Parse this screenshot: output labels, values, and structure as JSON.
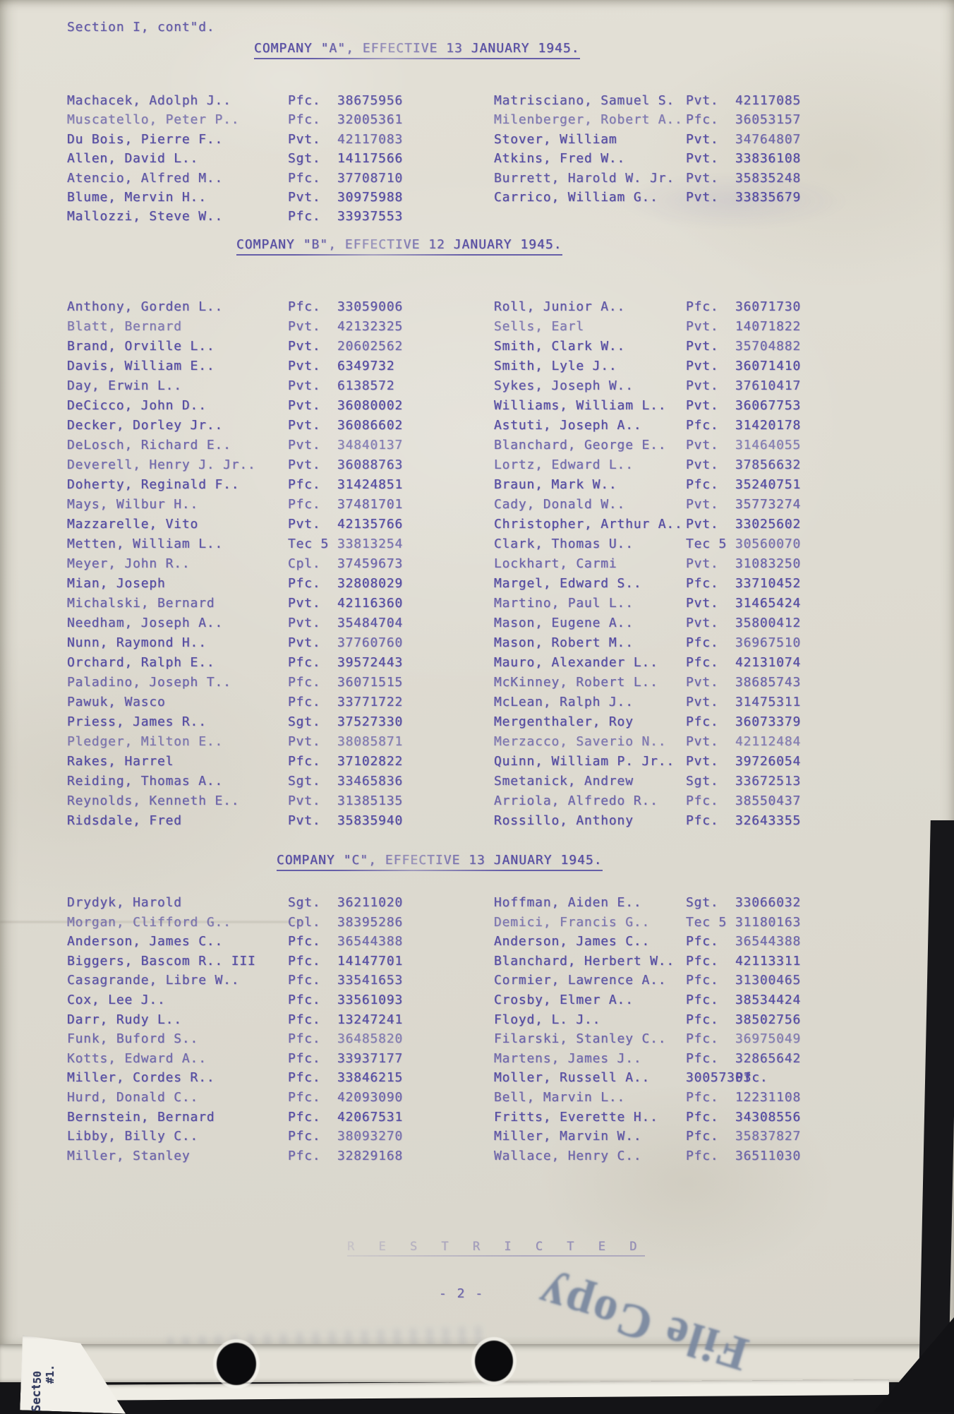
{
  "page": {
    "section_label": "Section I, cont\"d.",
    "restricted": "R E S T R I C T E D",
    "page_number": "- 2 -",
    "stamp": "File Copy",
    "edge_note_top": "50 #1.",
    "edge_note_bottom": "Sectio"
  },
  "ink_color": "#574ea2",
  "companies": [
    {
      "title": "COMPANY \"A\", EFFECTIVE 13 JANUARY 1945.",
      "left": [
        {
          "name": "Machacek, Adolph J..",
          "grade": "Pfc.",
          "serial": "38675956"
        },
        {
          "name": "Muscatello, Peter P..",
          "grade": "Pfc.",
          "serial": "32005361"
        },
        {
          "name": "Du Bois, Pierre F..",
          "grade": "Pvt.",
          "serial": "42117083"
        },
        {
          "name": "Allen, David L..",
          "grade": "Sgt.",
          "serial": "14117566"
        },
        {
          "name": "Atencio, Alfred M..",
          "grade": "Pfc.",
          "serial": "37708710"
        },
        {
          "name": "Blume, Mervin H..",
          "grade": "Pvt.",
          "serial": "30975988"
        },
        {
          "name": "Mallozzi, Steve W..",
          "grade": "Pfc.",
          "serial": "33937553"
        }
      ],
      "right": [
        {
          "name": "Matrisciano, Samuel S.",
          "grade": "Pvt.",
          "serial": "42117085"
        },
        {
          "name": "Milenberger, Robert A..",
          "grade": "Pfc.",
          "serial": "36053157"
        },
        {
          "name": "Stover, William",
          "grade": "Pvt.",
          "serial": "34764807"
        },
        {
          "name": "Atkins, Fred W..",
          "grade": "Pvt.",
          "serial": "33836108"
        },
        {
          "name": "Burrett, Harold W. Jr.",
          "grade": "Pvt.",
          "serial": "35835248"
        },
        {
          "name": "Carrico, William G..",
          "grade": "Pvt.",
          "serial": "33835679"
        }
      ]
    },
    {
      "title": "COMPANY \"B\", EFFECTIVE 12 JANUARY 1945.",
      "left": [
        {
          "name": "Anthony, Gorden L..",
          "grade": "Pfc.",
          "serial": "33059006"
        },
        {
          "name": "Blatt, Bernard",
          "grade": "Pvt.",
          "serial": "42132325"
        },
        {
          "name": "Brand, Orville L..",
          "grade": "Pvt.",
          "serial": "20602562"
        },
        {
          "name": "Davis, William E..",
          "grade": "Pvt.",
          "serial": "6349732"
        },
        {
          "name": "Day, Erwin L..",
          "grade": "Pvt.",
          "serial": "6138572"
        },
        {
          "name": "DeCicco, John D..",
          "grade": "Pvt.",
          "serial": "36080002"
        },
        {
          "name": "Decker, Dorley Jr..",
          "grade": "Pvt.",
          "serial": "36086602"
        },
        {
          "name": "DeLosch, Richard E..",
          "grade": "Pvt.",
          "serial": "34840137"
        },
        {
          "name": "Deverell, Henry J. Jr..",
          "grade": "Pvt.",
          "serial": "36088763"
        },
        {
          "name": "Doherty, Reginald F..",
          "grade": "Pfc.",
          "serial": "31424851"
        },
        {
          "name": "Mays, Wilbur H..",
          "grade": "Pfc.",
          "serial": "37481701"
        },
        {
          "name": "Mazzarelle, Vito",
          "grade": "Pvt.",
          "serial": "42135766"
        },
        {
          "name": "Metten, William L..",
          "grade": "Tec 5",
          "serial": "33813254"
        },
        {
          "name": "Meyer, John R..",
          "grade": "Cpl.",
          "serial": "37459673"
        },
        {
          "name": "Mian, Joseph",
          "grade": "Pfc.",
          "serial": "32808029"
        },
        {
          "name": "Michalski, Bernard",
          "grade": "Pvt.",
          "serial": "42116360"
        },
        {
          "name": "Needham, Joseph A..",
          "grade": "Pvt.",
          "serial": "35484704"
        },
        {
          "name": "Nunn, Raymond H..",
          "grade": "Pvt.",
          "serial": "37760760"
        },
        {
          "name": "Orchard, Ralph E..",
          "grade": "Pfc.",
          "serial": "39572443"
        },
        {
          "name": "Paladino, Joseph T..",
          "grade": "Pfc.",
          "serial": "36071515"
        },
        {
          "name": "Pawuk, Wasco",
          "grade": "Pfc.",
          "serial": "33771722"
        },
        {
          "name": "Priess, James R..",
          "grade": "Sgt.",
          "serial": "37527330"
        },
        {
          "name": "Pledger, Milton E..",
          "grade": "Pvt.",
          "serial": "38085871"
        },
        {
          "name": "Rakes, Harrel",
          "grade": "Pfc.",
          "serial": "37102822"
        },
        {
          "name": "Reiding, Thomas A..",
          "grade": "Sgt.",
          "serial": "33465836"
        },
        {
          "name": "Reynolds, Kenneth E..",
          "grade": "Pvt.",
          "serial": "31385135"
        },
        {
          "name": "Ridsdale, Fred",
          "grade": "Pvt.",
          "serial": "35835940"
        }
      ],
      "right": [
        {
          "name": "Roll, Junior A..",
          "grade": "Pfc.",
          "serial": "36071730"
        },
        {
          "name": "Sells, Earl",
          "grade": "Pvt.",
          "serial": "14071822"
        },
        {
          "name": "Smith, Clark W..",
          "grade": "Pvt.",
          "serial": "35704882"
        },
        {
          "name": "Smith, Lyle J..",
          "grade": "Pvt.",
          "serial": "36071410"
        },
        {
          "name": "Sykes, Joseph W..",
          "grade": "Pvt.",
          "serial": "37610417"
        },
        {
          "name": "Williams, William L..",
          "grade": "Pvt.",
          "serial": "36067753"
        },
        {
          "name": "Astuti, Joseph A..",
          "grade": "Pfc.",
          "serial": "31420178"
        },
        {
          "name": "Blanchard, George E..",
          "grade": "Pvt.",
          "serial": "31464055"
        },
        {
          "name": "Lortz, Edward L..",
          "grade": "Pvt.",
          "serial": "37856632"
        },
        {
          "name": "Braun, Mark W..",
          "grade": "Pfc.",
          "serial": "35240751"
        },
        {
          "name": "Cady, Donald W..",
          "grade": "Pvt.",
          "serial": "35773274"
        },
        {
          "name": "Christopher, Arthur A..",
          "grade": "Pvt.",
          "serial": "33025602"
        },
        {
          "name": "Clark, Thomas U..",
          "grade": "Tec 5",
          "serial": "30560070"
        },
        {
          "name": "Lockhart, Carmi",
          "grade": "Pvt.",
          "serial": "31083250"
        },
        {
          "name": "Margel, Edward S..",
          "grade": "Pfc.",
          "serial": "33710452"
        },
        {
          "name": "Martino, Paul L..",
          "grade": "Pvt.",
          "serial": "31465424"
        },
        {
          "name": "Mason, Eugene A..",
          "grade": "Pvt.",
          "serial": "35800412"
        },
        {
          "name": "Mason, Robert M..",
          "grade": "Pfc.",
          "serial": "36967510"
        },
        {
          "name": "Mauro, Alexander L..",
          "grade": "Pfc.",
          "serial": "42131074"
        },
        {
          "name": "McKinney, Robert L..",
          "grade": "Pvt.",
          "serial": "38685743"
        },
        {
          "name": "McLean, Ralph J..",
          "grade": "Pvt.",
          "serial": "31475311"
        },
        {
          "name": "Mergenthaler, Roy",
          "grade": "Pfc.",
          "serial": "36073379"
        },
        {
          "name": "Merzacco, Saverio N..",
          "grade": "Pvt.",
          "serial": "42112484"
        },
        {
          "name": "Quinn, William P. Jr..",
          "grade": "Pvt.",
          "serial": "39726054"
        },
        {
          "name": "Smetanick, Andrew",
          "grade": "Sgt.",
          "serial": "33672513"
        },
        {
          "name": "Arriola, Alfredo R..",
          "grade": "Pfc.",
          "serial": "38550437"
        },
        {
          "name": "Rossillo, Anthony",
          "grade": "Pfc.",
          "serial": "32643355"
        }
      ]
    },
    {
      "title": "COMPANY \"C\", EFFECTIVE 13 JANUARY 1945.",
      "left": [
        {
          "name": "Drydyk, Harold",
          "grade": "Sgt.",
          "serial": "36211020"
        },
        {
          "name": "Morgan, Clifford G..",
          "grade": "Cpl.",
          "serial": "38395286"
        },
        {
          "name": "Anderson, James C..",
          "grade": "Pfc.",
          "serial": "36544388"
        },
        {
          "name": "Biggers, Bascom R.. III",
          "grade": "Pfc.",
          "serial": "14147701"
        },
        {
          "name": "Casagrande, Libre W..",
          "grade": "Pfc.",
          "serial": "33541653"
        },
        {
          "name": "Cox, Lee J..",
          "grade": "Pfc.",
          "serial": "33561093"
        },
        {
          "name": "Darr, Rudy L..",
          "grade": "Pfc.",
          "serial": "13247241"
        },
        {
          "name": "Funk, Buford S..",
          "grade": "Pfc.",
          "serial": "36485820"
        },
        {
          "name": "Kotts, Edward A..",
          "grade": "Pfc.",
          "serial": "33937177"
        },
        {
          "name": "Miller, Cordes R..",
          "grade": "Pfc.",
          "serial": "33846215"
        },
        {
          "name": "Hurd, Donald C..",
          "grade": "Pfc.",
          "serial": "42093090"
        },
        {
          "name": "Bernstein, Bernard",
          "grade": "Pfc.",
          "serial": "42067531"
        },
        {
          "name": "Libby, Billy C..",
          "grade": "Pfc.",
          "serial": "38093270"
        },
        {
          "name": "Miller, Stanley",
          "grade": "Pfc.",
          "serial": "32829168"
        }
      ],
      "right": [
        {
          "name": "Hoffman, Aiden E..",
          "grade": "Sgt.",
          "serial": "33066032"
        },
        {
          "name": "Demici, Francis G..",
          "grade": "Tec 5",
          "serial": "31180163"
        },
        {
          "name": "Anderson, James C..",
          "grade": "Pfc.",
          "serial": "36544388"
        },
        {
          "name": "Blanchard, Herbert W..",
          "grade": "Pfc.",
          "serial": "42113311"
        },
        {
          "name": "Cormier, Lawrence A..",
          "grade": "Pfc.",
          "serial": "31300465"
        },
        {
          "name": "Crosby, Elmer A..",
          "grade": "Pfc.",
          "serial": "38534424"
        },
        {
          "name": "Floyd, L. J..",
          "grade": "Pfc.",
          "serial": "38502756"
        },
        {
          "name": "Filarski, Stanley C..",
          "grade": "Pfc.",
          "serial": "36975049"
        },
        {
          "name": "Martens, James J..",
          "grade": "Pfc.",
          "serial": "32865642"
        },
        {
          "name": "Moller, Russell A..",
          "grade": "30057303",
          "serial": "Pfc."
        },
        {
          "name": "Bell, Marvin L..",
          "grade": "Pfc.",
          "serial": "12231108"
        },
        {
          "name": "Fritts, Everette H..",
          "grade": "Pfc.",
          "serial": "34308556"
        },
        {
          "name": "Miller, Marvin W..",
          "grade": "Pfc.",
          "serial": "35837827"
        },
        {
          "name": "Wallace, Henry C..",
          "grade": "Pfc.",
          "serial": "36511030"
        }
      ]
    }
  ]
}
